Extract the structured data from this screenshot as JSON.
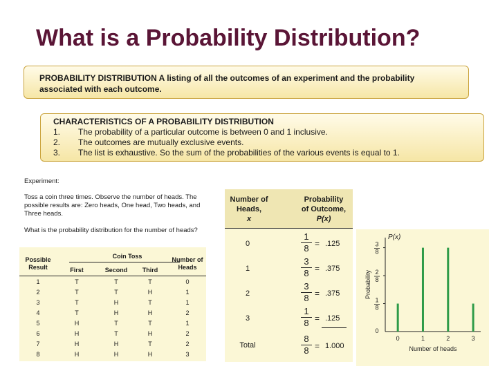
{
  "title": "What is a Probability Distribution?",
  "definition": {
    "line1": "PROBABILITY DISTRIBUTION  A listing of all the outcomes of an experiment and the probability",
    "line2": "associated with each outcome."
  },
  "characteristics": {
    "heading": "CHARACTERISTICS OF A PROBABILITY DISTRIBUTION",
    "items": [
      {
        "num": "1.",
        "text": "The probability of a particular outcome is between  0 and 1 inclusive."
      },
      {
        "num": "2.",
        "text": "The outcomes are mutually exclusive events."
      },
      {
        "num": "3.",
        "text": "The list is exhaustive. So the sum of the probabilities of the various events is equal to 1."
      }
    ]
  },
  "experiment": {
    "label": "Experiment:",
    "desc": "Toss a coin three times. Observe the number of heads. The possible results are: Zero heads,  One head,  Two heads, and Three heads.",
    "question": "What is the probability distribution for the number of heads?"
  },
  "coin_table": {
    "group_header": "Coin Toss",
    "headers": [
      "Possible Result",
      "First",
      "Second",
      "Third",
      "Number of Heads"
    ],
    "rows": [
      [
        "1",
        "T",
        "T",
        "T",
        "0"
      ],
      [
        "2",
        "T",
        "T",
        "H",
        "1"
      ],
      [
        "3",
        "T",
        "H",
        "T",
        "1"
      ],
      [
        "4",
        "T",
        "H",
        "H",
        "2"
      ],
      [
        "5",
        "H",
        "T",
        "T",
        "1"
      ],
      [
        "6",
        "H",
        "T",
        "H",
        "2"
      ],
      [
        "7",
        "H",
        "H",
        "T",
        "2"
      ],
      [
        "8",
        "H",
        "H",
        "H",
        "3"
      ]
    ]
  },
  "prob_table": {
    "col1": [
      "Number of",
      "Heads,",
      "x"
    ],
    "col2": [
      "Probability",
      "of Outcome,",
      "P(x)"
    ],
    "rows": [
      {
        "x": "0",
        "num": "1",
        "den": "8",
        "eq": "=",
        "val": ".125"
      },
      {
        "x": "1",
        "num": "3",
        "den": "8",
        "eq": "=",
        "val": ".375"
      },
      {
        "x": "2",
        "num": "3",
        "den": "8",
        "eq": "=",
        "val": ".375"
      },
      {
        "x": "3",
        "num": "1",
        "den": "8",
        "eq": "=",
        "val": ".125"
      }
    ],
    "total": {
      "label": "Total",
      "num": "8",
      "den": "8",
      "eq": "=",
      "val": "1.000"
    }
  },
  "chart_data": {
    "type": "bar",
    "x": [
      0,
      1,
      2,
      3
    ],
    "values": [
      0.125,
      0.375,
      0.375,
      0.125
    ],
    "y_tick_labels": [
      {
        "num": "1",
        "den": "8",
        "value": 0.125
      },
      {
        "num": "2",
        "den": "8",
        "value": 0.25
      },
      {
        "num": "3",
        "den": "8",
        "value": 0.375
      }
    ],
    "y_zero_label": "0",
    "x_tick_labels": [
      "0",
      "1",
      "2",
      "3"
    ],
    "ylabel": "Probability",
    "y_axis_title": "P(x)",
    "xlabel": "Number of heads",
    "ylim": [
      0,
      0.42
    ],
    "xlim": [
      -0.5,
      3.3
    ],
    "bar_color": "#2e9b48"
  }
}
